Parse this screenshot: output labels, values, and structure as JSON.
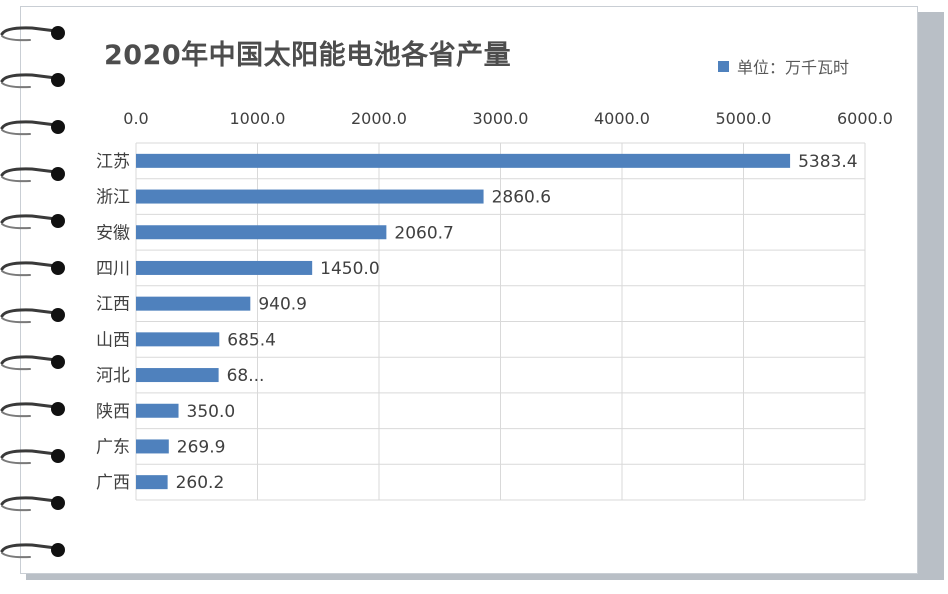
{
  "chart_data": {
    "type": "bar",
    "orientation": "horizontal",
    "title": "2020年中国太阳能电池各省产量",
    "legend": {
      "label": "单位：万千瓦时",
      "position": "top-right"
    },
    "categories": [
      "江苏",
      "浙江",
      "安徽",
      "四川",
      "江西",
      "山西",
      "河北",
      "陕西",
      "广东",
      "广西"
    ],
    "series": [
      {
        "name": "单位：万千瓦时",
        "values": [
          5383.4,
          2860.6,
          2060.7,
          1450.0,
          940.9,
          685.4,
          680.0,
          350.0,
          269.9,
          260.2
        ]
      }
    ],
    "data_labels": [
      "5383.4",
      "2860.6",
      "2060.7",
      "1450.0",
      "940.9",
      "685.4",
      "68...",
      "350.0",
      "269.9",
      "260.2"
    ],
    "xlim": [
      0,
      6000
    ],
    "x_ticks": [
      "0.0",
      "1000.0",
      "2000.0",
      "3000.0",
      "4000.0",
      "5000.0",
      "6000.0"
    ],
    "x_axis_position": "top",
    "grid": true,
    "colors": {
      "bar": "#4f81bd",
      "grid": "#d9d9d9",
      "text": "#404040",
      "title": "#4d4d4d"
    }
  }
}
